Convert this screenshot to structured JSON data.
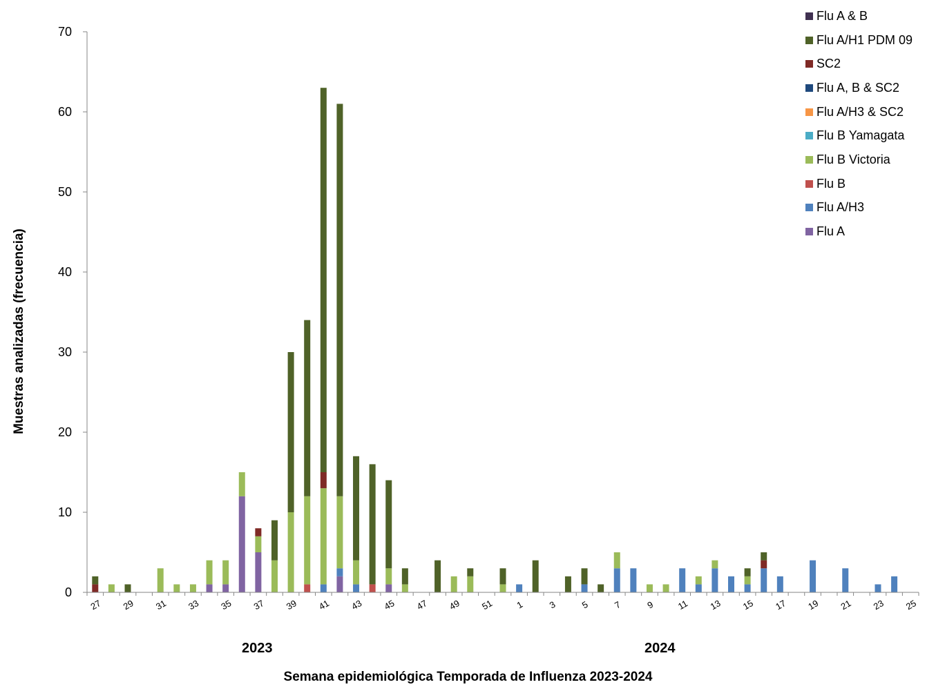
{
  "chart_data": {
    "type": "bar",
    "stacked": true,
    "title": "",
    "xlabel": "Semana epidemiológica Temporada de Influenza 2023-2024",
    "ylabel": "Muestras analizadas (frecuencia)",
    "ylim": [
      0,
      70
    ],
    "yticks": [
      0,
      10,
      20,
      30,
      40,
      50,
      60,
      70
    ],
    "year_labels": [
      "2023",
      "2024"
    ],
    "categories": [
      "27",
      "28",
      "29",
      "30",
      "31",
      "32",
      "33",
      "34",
      "35",
      "36",
      "37",
      "38",
      "39",
      "40",
      "41",
      "42",
      "43",
      "44",
      "45",
      "46",
      "47",
      "48",
      "49",
      "50",
      "51",
      "52",
      "1",
      "2",
      "3",
      "4",
      "5",
      "6",
      "7",
      "8",
      "9",
      "10",
      "11",
      "12",
      "13",
      "14",
      "15",
      "16",
      "17",
      "18",
      "19",
      "20",
      "21",
      "22",
      "23",
      "24",
      "25"
    ],
    "tick_labels": [
      "27",
      "",
      "29",
      "",
      "31",
      "",
      "33",
      "",
      "35",
      "",
      "37",
      "",
      "39",
      "",
      "41",
      "",
      "43",
      "",
      "45",
      "",
      "47",
      "",
      "49",
      "",
      "51",
      "",
      "1",
      "",
      "3",
      "",
      "5",
      "",
      "7",
      "",
      "9",
      "",
      "11",
      "",
      "13",
      "",
      "15",
      "",
      "17",
      "",
      "19",
      "",
      "21",
      "",
      "23",
      "",
      "25"
    ],
    "legend_position": "top-right",
    "legend_order": [
      "Flu A & B",
      "Flu A/H1 PDM 09",
      "SC2",
      "Flu A, B & SC2",
      "Flu A/H3 & SC2",
      "Flu B Yamagata",
      "Flu B Victoria",
      "Flu B",
      "Flu A/H3",
      "Flu A"
    ],
    "series": [
      {
        "name": "Flu A",
        "color": "#8064a2",
        "values": [
          0,
          0,
          0,
          0,
          0,
          0,
          0,
          1,
          1,
          12,
          5,
          0,
          0,
          0,
          0,
          2,
          0,
          0,
          1,
          0,
          0,
          0,
          0,
          0,
          0,
          0,
          0,
          0,
          0,
          0,
          0,
          0,
          0,
          0,
          0,
          0,
          0,
          0,
          0,
          0,
          0,
          0,
          0,
          0,
          0,
          0,
          0,
          0,
          0,
          0,
          0
        ]
      },
      {
        "name": "Flu A/H3",
        "color": "#4f81bd",
        "values": [
          0,
          0,
          0,
          0,
          0,
          0,
          0,
          0,
          0,
          0,
          0,
          0,
          0,
          0,
          1,
          1,
          1,
          0,
          0,
          0,
          0,
          0,
          0,
          0,
          0,
          0,
          1,
          0,
          0,
          0,
          1,
          0,
          3,
          3,
          0,
          0,
          3,
          1,
          3,
          2,
          1,
          3,
          2,
          0,
          4,
          0,
          3,
          0,
          1,
          2,
          0
        ]
      },
      {
        "name": "Flu B",
        "color": "#c0504d",
        "values": [
          0,
          0,
          0,
          0,
          0,
          0,
          0,
          0,
          0,
          0,
          0,
          0,
          0,
          1,
          0,
          0,
          0,
          1,
          0,
          0,
          0,
          0,
          0,
          0,
          0,
          0,
          0,
          0,
          0,
          0,
          0,
          0,
          0,
          0,
          0,
          0,
          0,
          0,
          0,
          0,
          0,
          0,
          0,
          0,
          0,
          0,
          0,
          0,
          0,
          0,
          0
        ]
      },
      {
        "name": "Flu B Victoria",
        "color": "#9bbb59",
        "values": [
          0,
          1,
          0,
          0,
          3,
          1,
          1,
          3,
          3,
          3,
          2,
          4,
          10,
          11,
          12,
          9,
          3,
          0,
          2,
          1,
          0,
          0,
          2,
          2,
          0,
          1,
          0,
          0,
          0,
          0,
          0,
          0,
          2,
          0,
          1,
          1,
          0,
          1,
          1,
          0,
          1,
          0,
          0,
          0,
          0,
          0,
          0,
          0,
          0,
          0,
          0
        ]
      },
      {
        "name": "Flu B Yamagata",
        "color": "#4bacc6",
        "values": [
          0,
          0,
          0,
          0,
          0,
          0,
          0,
          0,
          0,
          0,
          0,
          0,
          0,
          0,
          0,
          0,
          0,
          0,
          0,
          0,
          0,
          0,
          0,
          0,
          0,
          0,
          0,
          0,
          0,
          0,
          0,
          0,
          0,
          0,
          0,
          0,
          0,
          0,
          0,
          0,
          0,
          0,
          0,
          0,
          0,
          0,
          0,
          0,
          0,
          0,
          0
        ]
      },
      {
        "name": "Flu A/H3 & SC2",
        "color": "#f79646",
        "values": [
          0,
          0,
          0,
          0,
          0,
          0,
          0,
          0,
          0,
          0,
          0,
          0,
          0,
          0,
          0,
          0,
          0,
          0,
          0,
          0,
          0,
          0,
          0,
          0,
          0,
          0,
          0,
          0,
          0,
          0,
          0,
          0,
          0,
          0,
          0,
          0,
          0,
          0,
          0,
          0,
          0,
          0,
          0,
          0,
          0,
          0,
          0,
          0,
          0,
          0,
          0
        ]
      },
      {
        "name": "Flu A, B & SC2",
        "color": "#1f497d",
        "values": [
          0,
          0,
          0,
          0,
          0,
          0,
          0,
          0,
          0,
          0,
          0,
          0,
          0,
          0,
          0,
          0,
          0,
          0,
          0,
          0,
          0,
          0,
          0,
          0,
          0,
          0,
          0,
          0,
          0,
          0,
          0,
          0,
          0,
          0,
          0,
          0,
          0,
          0,
          0,
          0,
          0,
          0,
          0,
          0,
          0,
          0,
          0,
          0,
          0,
          0,
          0
        ]
      },
      {
        "name": "SC2",
        "color": "#7f2a26",
        "values": [
          1,
          0,
          0,
          0,
          0,
          0,
          0,
          0,
          0,
          0,
          1,
          0,
          0,
          0,
          2,
          0,
          0,
          0,
          0,
          0,
          0,
          0,
          0,
          0,
          0,
          0,
          0,
          0,
          0,
          0,
          0,
          0,
          0,
          0,
          0,
          0,
          0,
          0,
          0,
          0,
          0,
          1,
          0,
          0,
          0,
          0,
          0,
          0,
          0,
          0,
          0
        ]
      },
      {
        "name": "Flu A/H1 PDM 09",
        "color": "#4f6228",
        "values": [
          1,
          0,
          1,
          0,
          0,
          0,
          0,
          0,
          0,
          0,
          0,
          5,
          20,
          22,
          48,
          49,
          13,
          15,
          11,
          2,
          0,
          4,
          0,
          1,
          0,
          2,
          0,
          4,
          0,
          2,
          2,
          1,
          0,
          0,
          0,
          0,
          0,
          0,
          0,
          0,
          1,
          1,
          0,
          0,
          0,
          0,
          0,
          0,
          0,
          0,
          0
        ]
      },
      {
        "name": "Flu A & B",
        "color": "#403151",
        "values": [
          0,
          0,
          0,
          0,
          0,
          0,
          0,
          0,
          0,
          0,
          0,
          0,
          0,
          0,
          0,
          0,
          0,
          0,
          0,
          0,
          0,
          0,
          0,
          0,
          0,
          0,
          0,
          0,
          0,
          0,
          0,
          0,
          0,
          0,
          0,
          0,
          0,
          0,
          0,
          0,
          0,
          0,
          0,
          0,
          0,
          0,
          0,
          0,
          0,
          0,
          0
        ]
      }
    ]
  }
}
